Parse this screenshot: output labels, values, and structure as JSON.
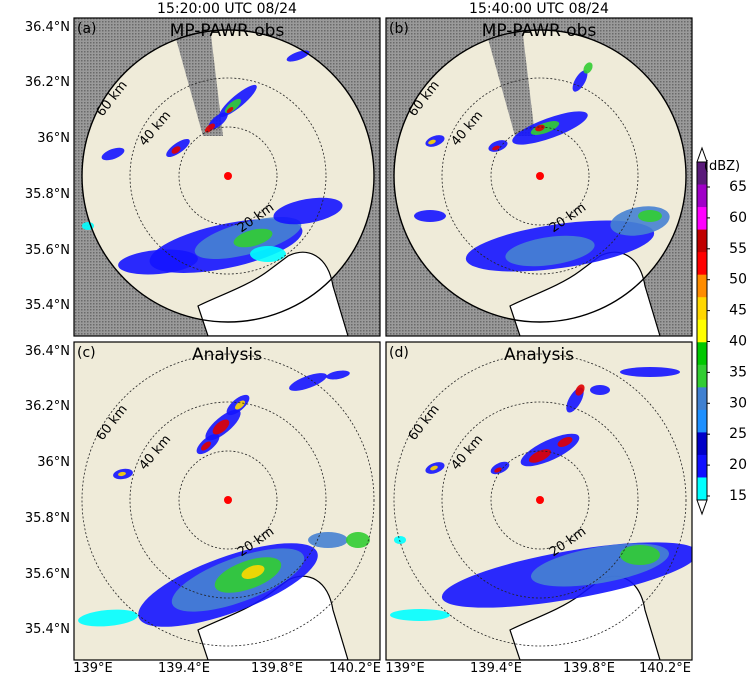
{
  "column_titles": [
    "15:20:00 UTC 08/24",
    "15:40:00 UTC 08/24"
  ],
  "panels": [
    {
      "letter": "(a)",
      "title": "MP-PAWR obs",
      "kind": "obs"
    },
    {
      "letter": "(b)",
      "title": "MP-PAWR obs",
      "kind": "obs"
    },
    {
      "letter": "(c)",
      "title": "Analysis",
      "kind": "analysis"
    },
    {
      "letter": "(d)",
      "title": "Analysis",
      "kind": "analysis"
    }
  ],
  "latitude_ticks": [
    "36.4°N",
    "36.2°N",
    "36°N",
    "35.8°N",
    "35.6°N",
    "35.4°N"
  ],
  "longitude_ticks": [
    "139°E",
    "139.4°E",
    "139.8°E",
    "140.2°E"
  ],
  "range_ring_labels": {
    "a": [
      "60 km",
      "40 km",
      "20 km"
    ],
    "b": [
      "60 km",
      "40 km",
      "20 km"
    ],
    "c": [
      "60 km",
      "40 km",
      "20 km"
    ],
    "d": [
      "60 km",
      "40 km",
      "20 km"
    ]
  },
  "colorbar": {
    "unit": "(dBZ)",
    "ticks": [
      "65",
      "60",
      "55",
      "50",
      "45",
      "40",
      "35",
      "30",
      "25",
      "20",
      "15"
    ],
    "colors": [
      "#5a1a7a",
      "#a000c8",
      "#ff00ff",
      "#c00000",
      "#ff0000",
      "#ff8c00",
      "#ffd700",
      "#ffff00",
      "#00c800",
      "#32cd32",
      "#4080d0",
      "#1e90ff",
      "#0000c8",
      "#1010ff",
      "#00ffff"
    ]
  },
  "colors": {
    "land": "#efebd9",
    "sea": "#ffffff",
    "no_data": "#8a8a8a",
    "radar_site": "#ff0000"
  }
}
